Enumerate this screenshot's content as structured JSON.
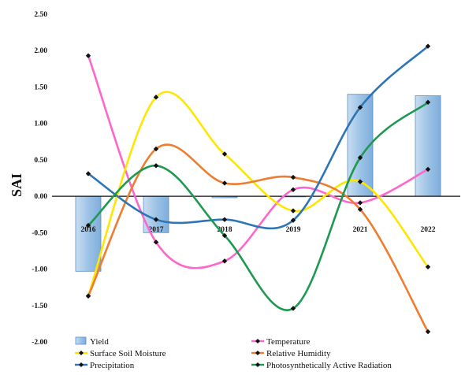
{
  "chart_data": {
    "type": "bar+line",
    "ylabel": "SAI",
    "ylim": [
      -2.0,
      2.5
    ],
    "yticks": [
      "2.50",
      "2.00",
      "1.50",
      "1.00",
      "0.50",
      "0.00",
      "-0.50",
      "-1.00",
      "-1.50",
      "-2.00"
    ],
    "categories": [
      "2016",
      "2017",
      "2018",
      "2019",
      "2021",
      "2022"
    ],
    "bar_series": {
      "name": "Yield",
      "color": "#9DC3E6",
      "values": [
        -1.03,
        -0.5,
        -0.02,
        0.0,
        1.4,
        1.38
      ]
    },
    "series": [
      {
        "name": "Temperature",
        "color": "#FF66CC",
        "values": [
          1.93,
          -0.63,
          -0.89,
          0.09,
          -0.09,
          0.37
        ]
      },
      {
        "name": "Surface Soil Moisture",
        "color": "#FFE600",
        "values": [
          -1.37,
          1.36,
          0.58,
          -0.2,
          0.2,
          -0.97
        ]
      },
      {
        "name": "Relative Humidity",
        "color": "#ED7D31",
        "values": [
          -1.37,
          0.65,
          0.18,
          0.26,
          -0.18,
          -1.86
        ]
      },
      {
        "name": "Precipitation",
        "color": "#2E75B6",
        "values": [
          0.31,
          -0.32,
          -0.32,
          -0.33,
          1.22,
          2.06
        ]
      },
      {
        "name": "Photosynthetically Active Radiation",
        "color": "#1E9A50",
        "values": [
          -0.4,
          0.42,
          -0.54,
          -1.54,
          0.53,
          1.29
        ]
      }
    ],
    "legend": "bottom, two columns",
    "grid": false
  }
}
